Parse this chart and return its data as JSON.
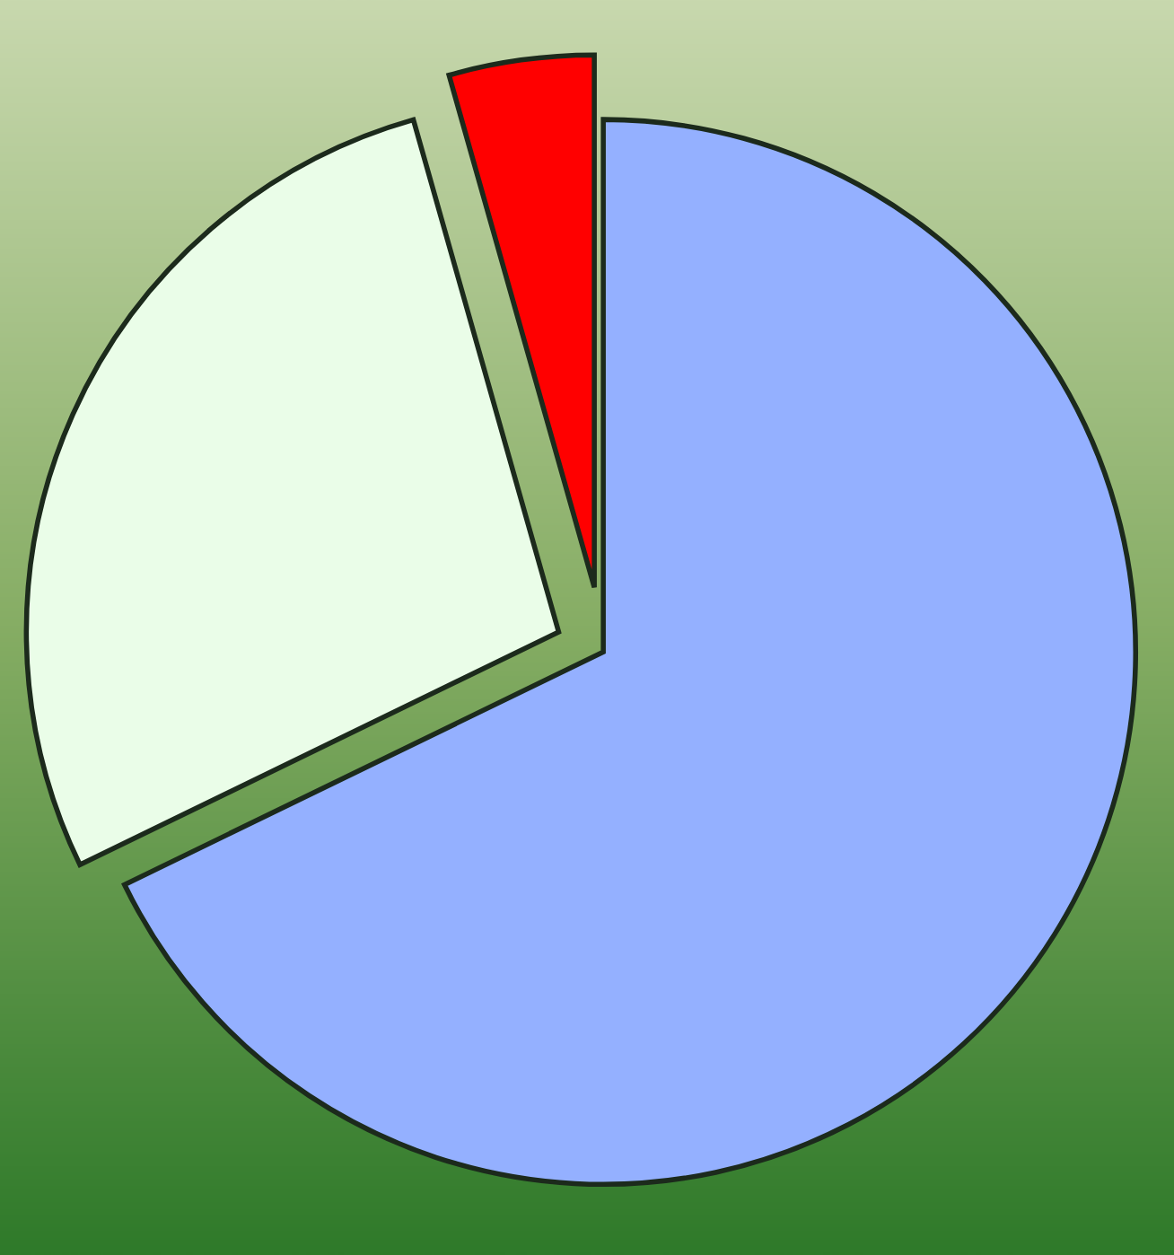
{
  "chart_data": {
    "type": "pie",
    "categories": [
      null,
      null,
      null
    ],
    "values": [
      67.8,
      27.8,
      4.4
    ],
    "colors": [
      "#94b0ff",
      "#eafde8",
      "#ff0000"
    ]
  }
}
